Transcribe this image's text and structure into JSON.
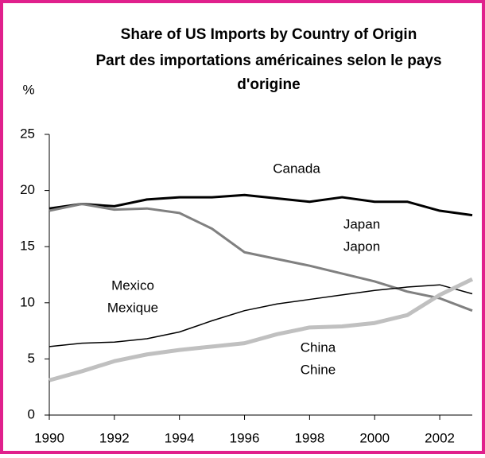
{
  "chart_data": {
    "type": "line",
    "title": [
      "Share of US Imports by Country of Origin",
      "Part des importations américaines selon le pays",
      "d'origine"
    ],
    "ylabel": "%",
    "x": [
      1990,
      1991,
      1992,
      1993,
      1994,
      1995,
      1996,
      1997,
      1998,
      1999,
      2000,
      2001,
      2002,
      2003
    ],
    "series": [
      {
        "name": "Canada",
        "color": "#000000",
        "width": 3,
        "values": [
          18.4,
          18.8,
          18.6,
          19.2,
          19.4,
          19.4,
          19.6,
          19.3,
          19.0,
          19.4,
          19.0,
          19.0,
          18.2,
          17.8
        ]
      },
      {
        "name": "Japan",
        "name_fr": "Japon",
        "color": "#808080",
        "width": 3,
        "values": [
          18.2,
          18.8,
          18.3,
          18.4,
          18.0,
          16.6,
          14.5,
          13.9,
          13.3,
          12.6,
          11.9,
          11.0,
          10.4,
          9.3
        ]
      },
      {
        "name": "Mexico",
        "name_fr": "Mexique",
        "color": "#000000",
        "width": 1.5,
        "values": [
          6.1,
          6.4,
          6.5,
          6.8,
          7.4,
          8.4,
          9.3,
          9.9,
          10.3,
          10.7,
          11.1,
          11.4,
          11.6,
          10.8
        ]
      },
      {
        "name": "China",
        "name_fr": "Chine",
        "color": "#c0c0c0",
        "width": 5,
        "values": [
          3.1,
          3.9,
          4.8,
          5.4,
          5.8,
          6.1,
          6.4,
          7.2,
          7.8,
          7.9,
          8.2,
          8.9,
          10.7,
          12.1
        ]
      }
    ],
    "xlim": [
      1990,
      2003
    ],
    "xticks": [
      1990,
      1992,
      1994,
      1996,
      1998,
      2000,
      2002
    ],
    "ylim": [
      0,
      25
    ],
    "yticks": [
      0,
      5,
      10,
      15,
      20,
      25
    ],
    "grid": false
  }
}
